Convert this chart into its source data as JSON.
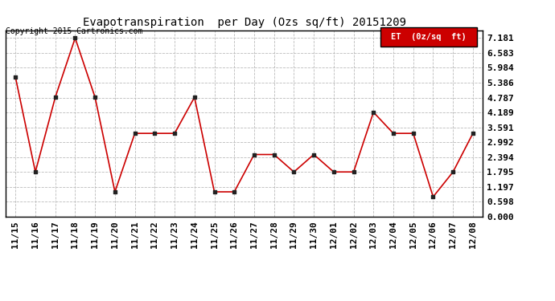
{
  "title": "Evapotranspiration  per Day (Ozs sq/ft) 20151209",
  "copyright": "Copyright 2015 Cartronics.com",
  "legend_label": "ET  (0z/sq  ft)",
  "legend_bg": "#cc0000",
  "line_color": "#cc0000",
  "marker_color": "#222222",
  "bg_color": "#ffffff",
  "grid_color": "#bbbbbb",
  "dates": [
    "11/15",
    "11/16",
    "11/17",
    "11/18",
    "11/19",
    "11/20",
    "11/21",
    "11/22",
    "11/23",
    "11/24",
    "11/25",
    "11/26",
    "11/27",
    "11/28",
    "11/29",
    "11/30",
    "12/01",
    "12/02",
    "12/03",
    "12/04",
    "12/05",
    "12/06",
    "12/07",
    "12/08"
  ],
  "values": [
    5.6,
    1.8,
    4.8,
    7.181,
    4.8,
    1.0,
    3.35,
    3.35,
    3.35,
    4.8,
    1.0,
    1.0,
    2.5,
    2.5,
    1.8,
    2.5,
    1.8,
    1.8,
    4.2,
    3.35,
    3.35,
    0.8,
    1.8,
    3.35
  ],
  "yticks": [
    0.0,
    0.598,
    1.197,
    1.795,
    2.394,
    2.992,
    3.591,
    4.189,
    4.787,
    5.386,
    5.984,
    6.583,
    7.181
  ],
  "ylim": [
    0.0,
    7.5
  ],
  "title_fontsize": 10,
  "tick_fontsize": 8,
  "copyright_fontsize": 7
}
